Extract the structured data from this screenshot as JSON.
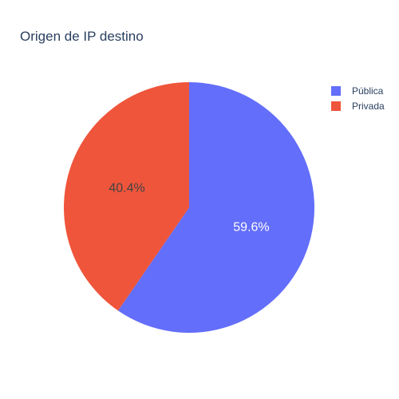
{
  "chart_data": {
    "type": "pie",
    "title": "Origen de IP destino",
    "slices": [
      {
        "label": "Pública",
        "value": 59.6,
        "text": "59.6%",
        "color": "#636efa",
        "text_color": "#ffffff"
      },
      {
        "label": "Privada",
        "value": 40.4,
        "text": "40.4%",
        "color": "#ef553b",
        "text_color": "#444444"
      }
    ],
    "legend_position": "top-right"
  }
}
